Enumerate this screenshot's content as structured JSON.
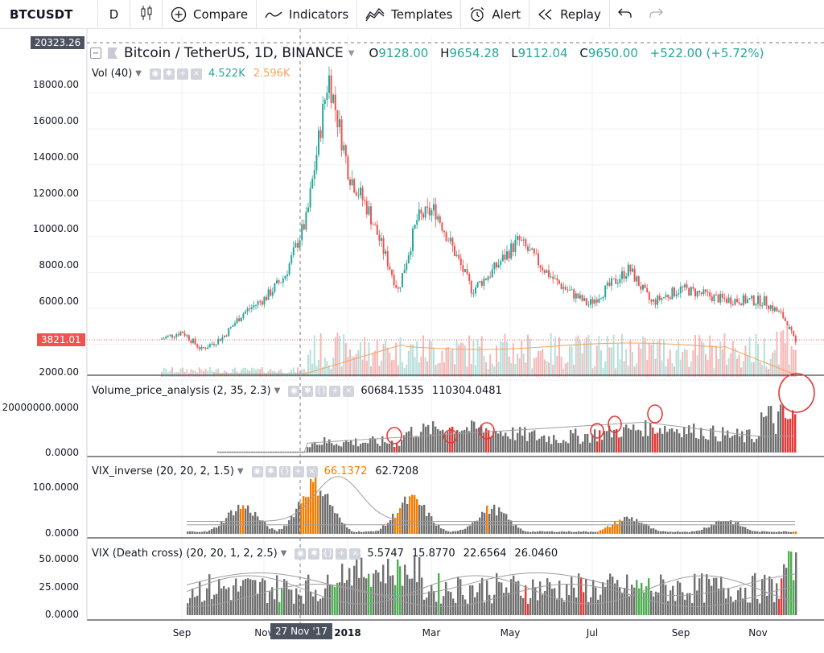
{
  "toolbar": {
    "symbol": "BTCUSDT",
    "interval": "D",
    "compare": "Compare",
    "indicators": "Indicators",
    "templates": "Templates",
    "alert": "Alert",
    "replay": "Replay"
  },
  "main_pane": {
    "title": "Bitcoin / TetherUS, 1D, BINANCE",
    "ohlc": {
      "o_label": "O",
      "o": "9128.00",
      "h_label": "H",
      "h": "9654.28",
      "l_label": "L",
      "l": "9112.04",
      "c_label": "C",
      "c": "9650.00",
      "change": "+522.00 (+5.72%)"
    },
    "vol_label": "Vol (40)",
    "vol_values": [
      "4.522K",
      "2.596K"
    ],
    "y_ticks": [
      "18000.00",
      "16000.00",
      "14000.00",
      "12000.00",
      "10000.00",
      "8000.00",
      "6000.00",
      "2000.00"
    ],
    "crosshair_price": "20323.26",
    "last_price": "3821.01"
  },
  "indicators": [
    {
      "label": "Volume_price_analysis (2, 35, 2.3)",
      "values": [
        "60684.1535",
        "110304.0481"
      ],
      "y_ticks": [
        "20000000.0000",
        "0.0000"
      ]
    },
    {
      "label": "VIX_inverse (20, 20, 2, 1.5)",
      "values": [
        "66.1372",
        "62.7208"
      ],
      "y_ticks": [
        "100.0000",
        "0.0000"
      ]
    },
    {
      "label": "VIX (Death cross) (20, 20, 1, 2, 2.5)",
      "values": [
        "5.5747",
        "15.8770",
        "22.6564",
        "26.0460"
      ],
      "y_ticks": [
        "50.0000",
        "25.0000",
        "0.0000"
      ]
    }
  ],
  "x_axis": {
    "labels": [
      "Sep",
      "Nov",
      "2018",
      "Mar",
      "May",
      "Jul",
      "Sep",
      "Nov"
    ],
    "crosshair_date": "27 Nov '17"
  },
  "colors": {
    "up": "#26a69a",
    "down": "#ef5350",
    "vol_up": "#b7e0db",
    "vol_down": "#f5b7b6",
    "ma": "#f7a35c",
    "grey_bar": "#707070",
    "accent_red": "#e53935"
  },
  "chart_data": [
    {
      "type": "candlestick",
      "title": "Bitcoin / TetherUS, 1D, BINANCE",
      "x": [
        "2017-08-17",
        "2017-09-01",
        "2017-09-15",
        "2017-10-01",
        "2017-10-15",
        "2017-11-01",
        "2017-11-15",
        "2017-12-01",
        "2017-12-17",
        "2018-01-01",
        "2018-01-15",
        "2018-02-06",
        "2018-02-20",
        "2018-03-05",
        "2018-04-01",
        "2018-04-15",
        "2018-05-05",
        "2018-06-01",
        "2018-06-25",
        "2018-07-25",
        "2018-08-10",
        "2018-09-01",
        "2018-10-01",
        "2018-11-01",
        "2018-11-15",
        "2018-11-25"
      ],
      "close": [
        4300,
        4700,
        3700,
        4400,
        5700,
        6600,
        7800,
        11000,
        19000,
        13500,
        11500,
        7000,
        11000,
        11500,
        7000,
        8000,
        9800,
        7500,
        6200,
        8200,
        6300,
        7100,
        6500,
        6400,
        5500,
        3821
      ],
      "ylim": [
        2000,
        20500
      ]
    }
  ]
}
